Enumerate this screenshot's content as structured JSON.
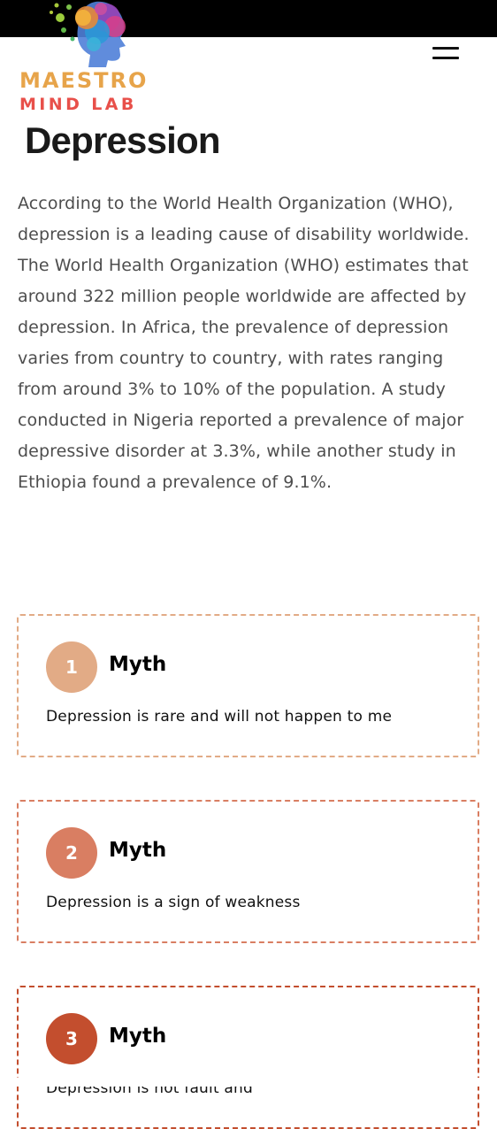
{
  "brand": {
    "line1": "MAESTRO",
    "line2": "MIND LAB",
    "colors": {
      "line1": "#e7a44a",
      "line2": "#e8504a"
    }
  },
  "header": {
    "menu_icon": "hamburger-menu-icon"
  },
  "page": {
    "title": "Depression",
    "intro": "According to the World Health Organization (WHO), depression is a leading cause of disability worldwide. The World Health Organization (WHO) estimates that around 322 million people worldwide are affected by depression. In Africa, the prevalence of depression varies from country to country, with rates ranging from around 3% to 10% of the population. A study conducted in Nigeria reported a prevalence of major depressive disorder at 3.3%, while another study in Ethiopia found a prevalence of 9.1%."
  },
  "myths": [
    {
      "number": "1",
      "title": "Myth",
      "text": "Depression is rare and will not happen to me",
      "color": "#e2ab86"
    },
    {
      "number": "2",
      "title": "Myth",
      "text": "Depression is a sign of weakness",
      "color": "#d97e62"
    },
    {
      "number": "3",
      "title": "Myth",
      "text": "Depression is not fault and",
      "color": "#c34e2e"
    }
  ]
}
